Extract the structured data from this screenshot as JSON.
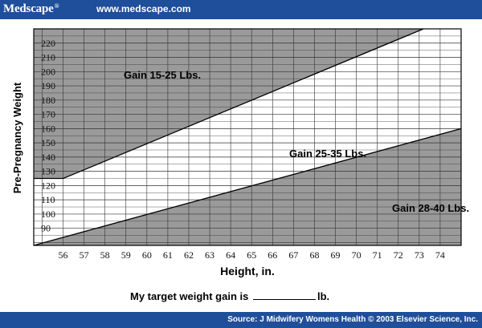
{
  "header": {
    "brand": "Medscape",
    "reg": "®",
    "url": "www.medscape.com"
  },
  "chart_data": {
    "type": "area",
    "xlabel": "Height, in.",
    "ylabel": "Pre-Pregnancy Weight",
    "x_ticks": [
      56,
      57,
      58,
      59,
      60,
      61,
      62,
      63,
      64,
      65,
      66,
      67,
      68,
      69,
      70,
      71,
      72,
      73,
      74
    ],
    "y_ticks": [
      90,
      100,
      110,
      120,
      130,
      140,
      150,
      160,
      170,
      180,
      190,
      200,
      210,
      220
    ],
    "xlim": [
      54.6,
      75
    ],
    "ylim": [
      78,
      230
    ],
    "grid": true,
    "upper_boundary": {
      "x": [
        54.6,
        56,
        56.5,
        73.2
      ],
      "y": [
        125,
        125,
        128,
        230
      ]
    },
    "lower_boundary": {
      "x": [
        54.6,
        75
      ],
      "y": [
        78,
        160
      ]
    },
    "regions": [
      {
        "label": "Gain 15-25 Lbs.",
        "shaded": true
      },
      {
        "label": "Gain 25-35 Lbs.",
        "shaded": false
      },
      {
        "label": "Gain 28-40 Lbs.",
        "shaded": true
      }
    ]
  },
  "target": {
    "prefix": "My target weight gain is",
    "suffix": "lb."
  },
  "footer": {
    "source": "Source: J Midwifery Womens Health © 2003 Elsevier Science, Inc."
  },
  "colors": {
    "brand_blue": "#1f4e9a",
    "shade": "#9a9a9a",
    "grid": "#333333"
  }
}
